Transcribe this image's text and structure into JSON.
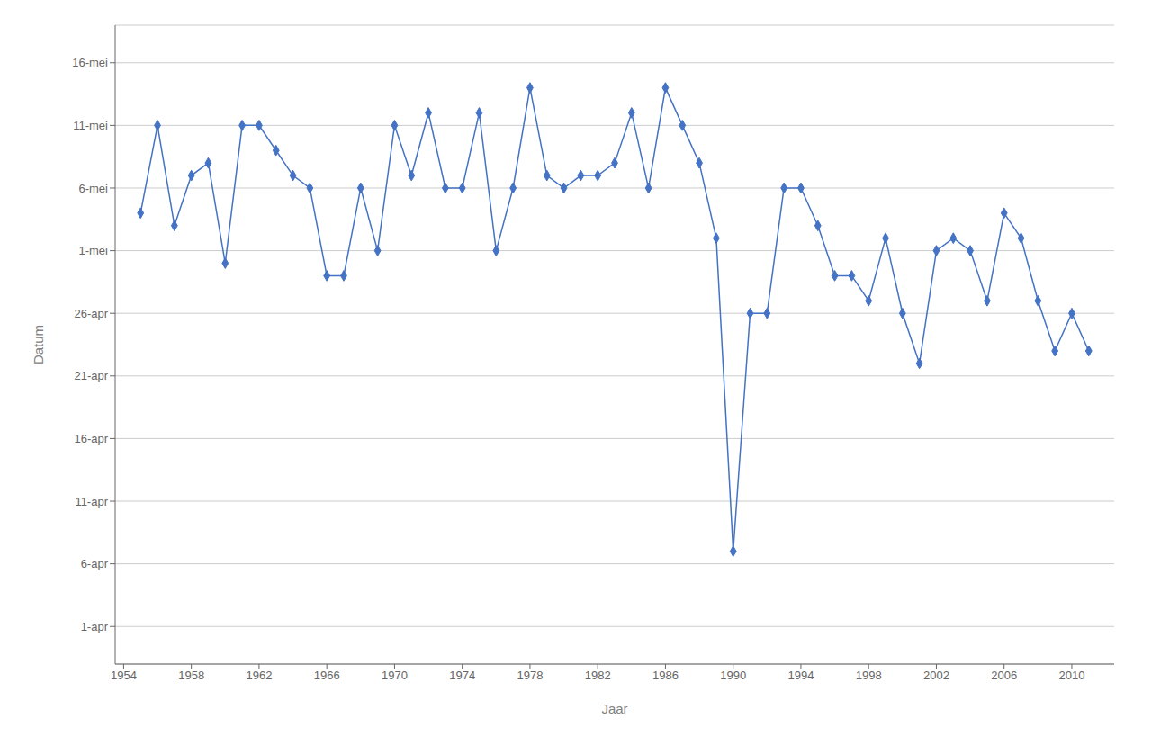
{
  "chart_data": {
    "type": "line",
    "xlabel": "Jaar",
    "ylabel": "Datum",
    "color": "#4472C4",
    "marker": "diamond",
    "grid": true,
    "xlim": [
      1953.5,
      2012.5
    ],
    "ylim": [
      88,
      139
    ],
    "xticks": [
      1954,
      1958,
      1962,
      1966,
      1970,
      1974,
      1978,
      1982,
      1986,
      1990,
      1994,
      1998,
      2002,
      2006,
      2010
    ],
    "yticks": [
      {
        "value": 91,
        "label": "1-apr"
      },
      {
        "value": 96,
        "label": "6-apr"
      },
      {
        "value": 101,
        "label": "11-apr"
      },
      {
        "value": 106,
        "label": "16-apr"
      },
      {
        "value": 111,
        "label": "21-apr"
      },
      {
        "value": 116,
        "label": "26-apr"
      },
      {
        "value": 121,
        "label": "1-mei"
      },
      {
        "value": 126,
        "label": "6-mei"
      },
      {
        "value": 131,
        "label": "11-mei"
      },
      {
        "value": 136,
        "label": "16-mei"
      }
    ],
    "x": [
      1955,
      1956,
      1957,
      1958,
      1959,
      1960,
      1961,
      1962,
      1963,
      1964,
      1965,
      1966,
      1967,
      1968,
      1969,
      1970,
      1971,
      1972,
      1973,
      1974,
      1975,
      1976,
      1977,
      1978,
      1979,
      1980,
      1981,
      1982,
      1983,
      1984,
      1985,
      1986,
      1987,
      1988,
      1989,
      1990,
      1991,
      1992,
      1993,
      1994,
      1995,
      1996,
      1997,
      1998,
      1999,
      2000,
      2001,
      2002,
      2003,
      2004,
      2005,
      2006,
      2007,
      2008,
      2009,
      2010,
      2011
    ],
    "values": [
      124,
      131,
      123,
      127,
      128,
      120,
      131,
      131,
      129,
      127,
      126,
      119,
      119,
      126,
      121,
      131,
      127,
      132,
      126,
      126,
      132,
      121,
      126,
      134,
      127,
      126,
      127,
      127,
      128,
      132,
      126,
      134,
      131,
      128,
      122,
      97,
      116,
      116,
      126,
      126,
      123,
      119,
      119,
      117,
      122,
      116,
      112,
      121,
      122,
      121,
      117,
      124,
      122,
      117,
      113,
      116,
      113
    ]
  }
}
